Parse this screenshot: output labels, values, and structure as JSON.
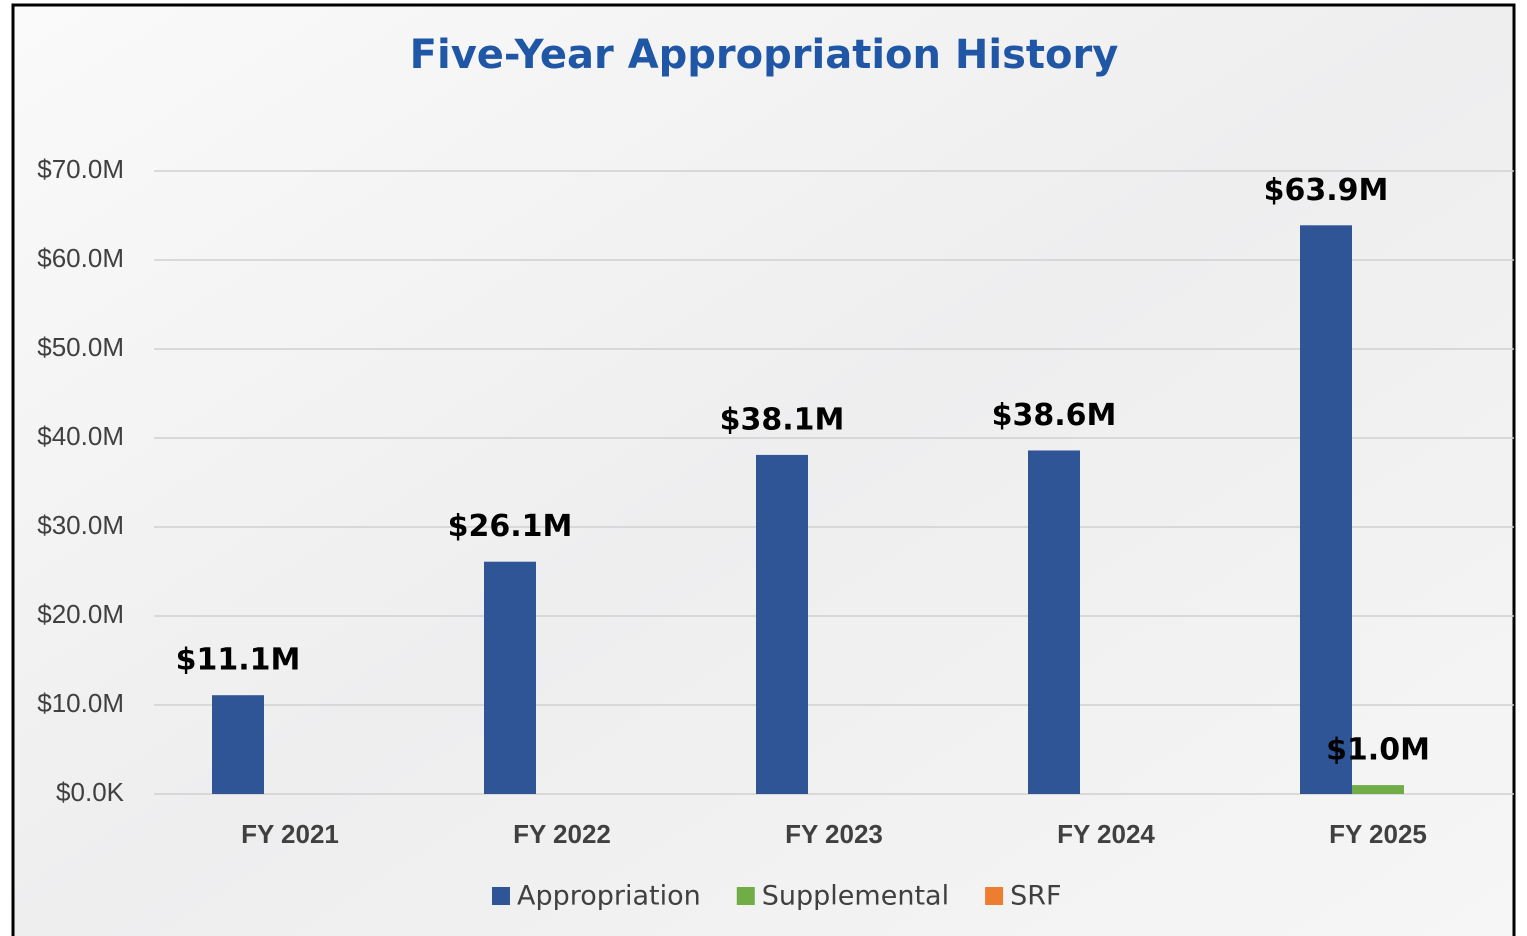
{
  "chart_data": {
    "type": "bar",
    "title": "Five-Year Appropriation History",
    "categories": [
      "FY 2021",
      "FY 2022",
      "FY 2023",
      "FY 2024",
      "FY 2025"
    ],
    "series": [
      {
        "name": "Appropriation",
        "color": "#2f5597",
        "values": [
          11.1,
          26.1,
          38.1,
          38.6,
          63.9
        ],
        "value_labels": [
          "$11.1M",
          "$26.1M",
          "$38.1M",
          "$38.6M",
          "$63.9M"
        ]
      },
      {
        "name": "Supplemental",
        "color": "#70ad47",
        "values": [
          null,
          null,
          null,
          null,
          1.0
        ],
        "value_labels": [
          null,
          null,
          null,
          null,
          "$1.0M"
        ]
      },
      {
        "name": "SRF",
        "color": "#ed7d31",
        "values": [
          null,
          null,
          null,
          null,
          null
        ]
      }
    ],
    "ylim": [
      0,
      70
    ],
    "yticks": [
      {
        "value": 0,
        "label": "$0.0K"
      },
      {
        "value": 10,
        "label": "$10.0M"
      },
      {
        "value": 20,
        "label": "$20.0M"
      },
      {
        "value": 30,
        "label": "$30.0M"
      },
      {
        "value": 40,
        "label": "$40.0M"
      },
      {
        "value": 50,
        "label": "$50.0M"
      },
      {
        "value": 60,
        "label": "$60.0M"
      },
      {
        "value": 70,
        "label": "$70.0M"
      }
    ],
    "grid": true,
    "legend": "bottom"
  }
}
